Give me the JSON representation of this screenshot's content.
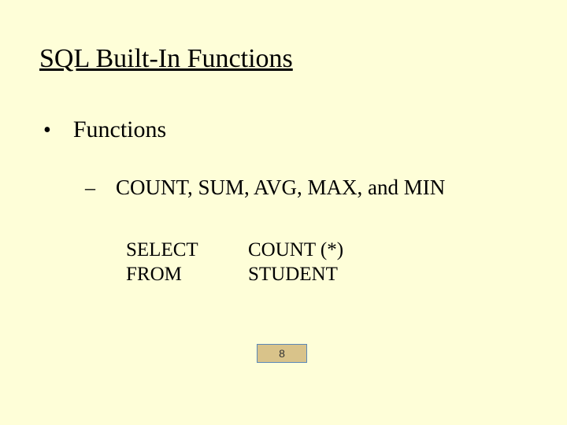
{
  "title": "SQL Built-In Functions",
  "bullet": {
    "marker": "•",
    "text": "Functions"
  },
  "subbullet": {
    "marker": "–",
    "text": "COUNT, SUM, AVG, MAX, and MIN"
  },
  "sql": {
    "line1_kw": "SELECT",
    "line1_val": "COUNT (*)",
    "line2_kw": "FROM",
    "line2_val": "STUDENT"
  },
  "page_number": "8",
  "colors": {
    "background": "#fefed8",
    "pagenum_border": "#5a88b8",
    "pagenum_fill": "#d9c38a"
  }
}
